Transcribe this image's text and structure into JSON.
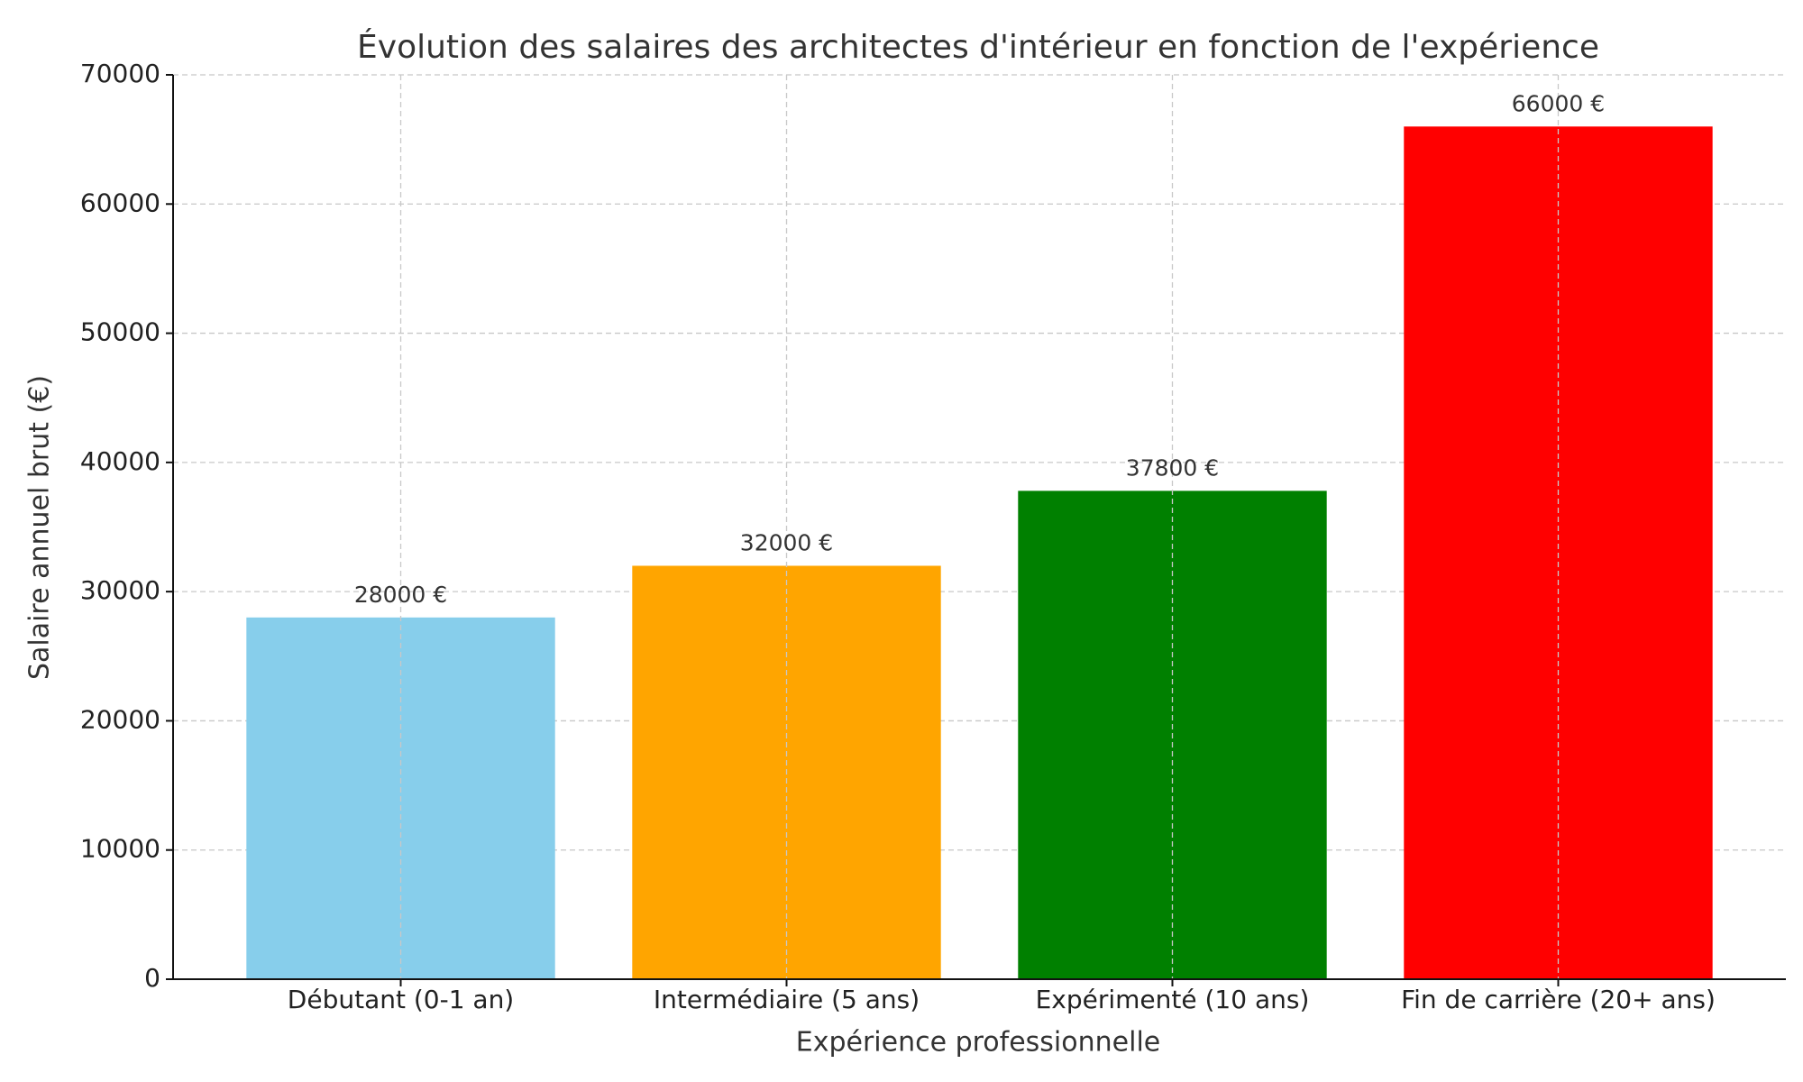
{
  "chart_data": {
    "type": "bar",
    "title": "Évolution des salaires des architectes d'intérieur en fonction de l'expérience",
    "x_label": "Expérience professionnelle",
    "y_label": "Salaire annuel brut (€)",
    "categories": [
      "Débutant (0-1 an)",
      "Intermédiaire (5 ans)",
      "Expérimenté (10 ans)",
      "Fin de carrière (20+ ans)"
    ],
    "values": [
      28000,
      32000,
      37800,
      66000
    ],
    "value_labels": [
      "28000 €",
      "32000 €",
      "37800 €",
      "66000 €"
    ],
    "colors": [
      "#87ceeb",
      "#ffa500",
      "#008000",
      "#ff0000"
    ],
    "ylim": [
      0,
      70000
    ],
    "yticks": [
      0,
      10000,
      20000,
      30000,
      40000,
      50000,
      60000,
      70000
    ],
    "grid": true
  }
}
